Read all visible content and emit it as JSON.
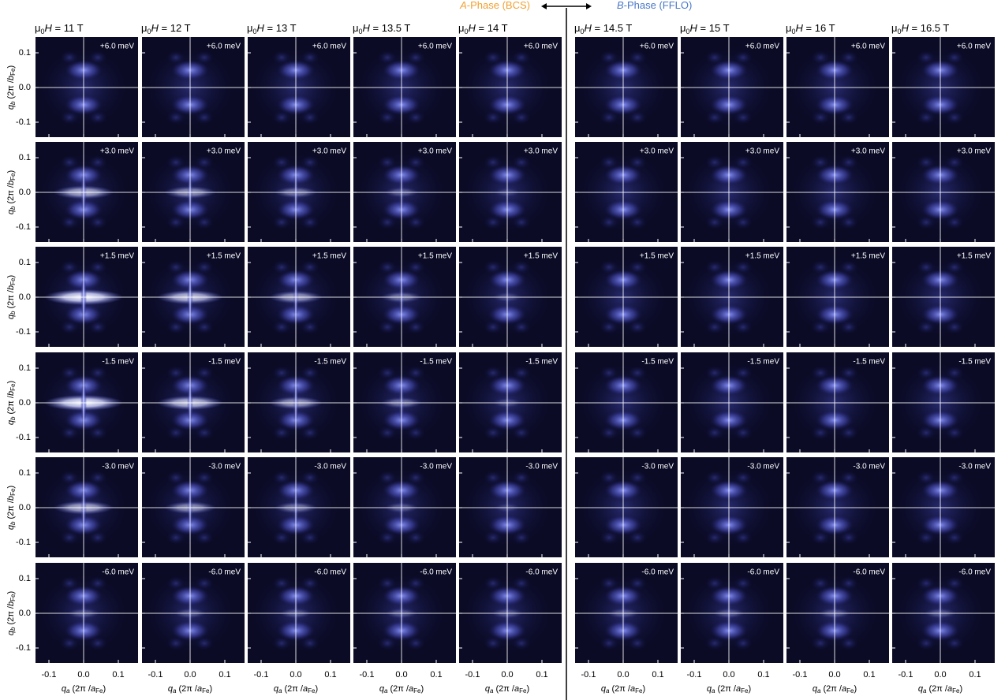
{
  "figure": {
    "phase_a": {
      "letter": "A",
      "rest": "-Phase (BCS)"
    },
    "phase_b": {
      "letter": "B",
      "rest": "-Phase (FFLO)"
    },
    "field_label": {
      "mu": "μ",
      "sub": "0",
      "H": "H",
      "eq": " = "
    },
    "fields": [
      "11 T",
      "12 T",
      "13 T",
      "13.5 T",
      "14 T",
      "14.5 T",
      "15 T",
      "16 T",
      "16.5 T"
    ],
    "energies": [
      "+6.0 meV",
      "+3.0 meV",
      "+1.5 meV",
      "-1.5 meV",
      "-3.0 meV",
      "-6.0 meV"
    ],
    "ticks": [
      "-0.1",
      "0.0",
      "0.1"
    ],
    "y_label": {
      "q": "q",
      "q_sub": "b",
      "pre": " (2π /",
      "b": "b",
      "b_sub": "Fe",
      "close": ")"
    },
    "x_label": {
      "q": "q",
      "q_sub": "a",
      "pre": " (2π /",
      "a": "a",
      "a_sub": "Fe",
      "close": ")"
    }
  }
}
